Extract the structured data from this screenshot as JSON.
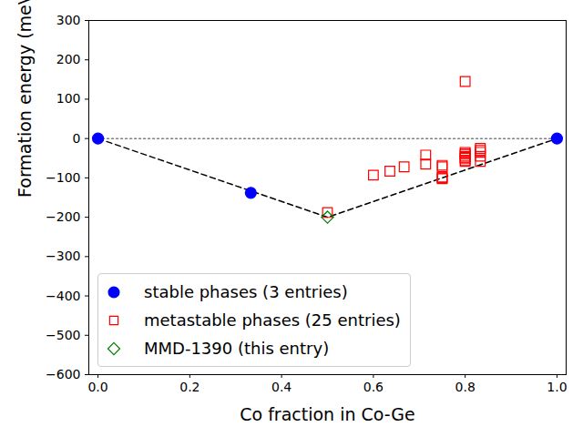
{
  "chart_data": {
    "type": "scatter",
    "xlabel": "Co fraction in Co-Ge",
    "ylabel": "Formation energy (meV/atom)",
    "xlim": [
      -0.02,
      1.02
    ],
    "ylim": [
      -600,
      300
    ],
    "xticks": [
      {
        "value": 0,
        "label": "0.0"
      },
      {
        "value": 0.2,
        "label": "0.2"
      },
      {
        "value": 0.4,
        "label": "0.4"
      },
      {
        "value": 0.6,
        "label": "0.6"
      },
      {
        "value": 0.8,
        "label": "0.8"
      },
      {
        "value": 1,
        "label": "1.0"
      }
    ],
    "yticks": [
      -600,
      -500,
      -400,
      -300,
      -200,
      -100,
      0,
      100,
      200,
      300
    ],
    "grid": false,
    "legend": "lower left",
    "series": [
      {
        "name": "stable phases (3 entries)",
        "color": "blue",
        "marker": "filled circle",
        "x": [
          0,
          0.333,
          1
        ],
        "values": [
          0,
          -138,
          0
        ]
      },
      {
        "name": "metastable phases (25 entries)",
        "color": "red",
        "marker": "open square",
        "x": [
          0.5,
          0.6,
          0.636,
          0.667,
          0.714,
          0.714,
          0.75,
          0.75,
          0.75,
          0.75,
          0.75,
          0.8,
          0.8,
          0.8,
          0.8,
          0.8,
          0.8,
          0.8,
          0.8,
          0.8,
          0.833,
          0.833,
          0.833,
          0.833,
          0.833
        ],
        "values": [
          -188,
          -93,
          -83,
          -72,
          -42,
          -65,
          -68,
          -72,
          -98,
          -102,
          -100,
          145,
          -35,
          -38,
          -40,
          -45,
          -48,
          -50,
          -55,
          -58,
          -25,
          -30,
          -35,
          -45,
          -58
        ]
      },
      {
        "name": "MMD-1390 (this entry)",
        "color": "green",
        "marker": "open diamond",
        "x": [
          0.5
        ],
        "values": [
          -200
        ]
      }
    ],
    "hull": {
      "x": [
        0,
        0.5,
        1
      ],
      "values": [
        0,
        -200,
        0
      ],
      "color": "black",
      "line_style": "dashed"
    },
    "reference_line": {
      "value": 0,
      "color": "gray",
      "line_style": "dotted"
    }
  }
}
